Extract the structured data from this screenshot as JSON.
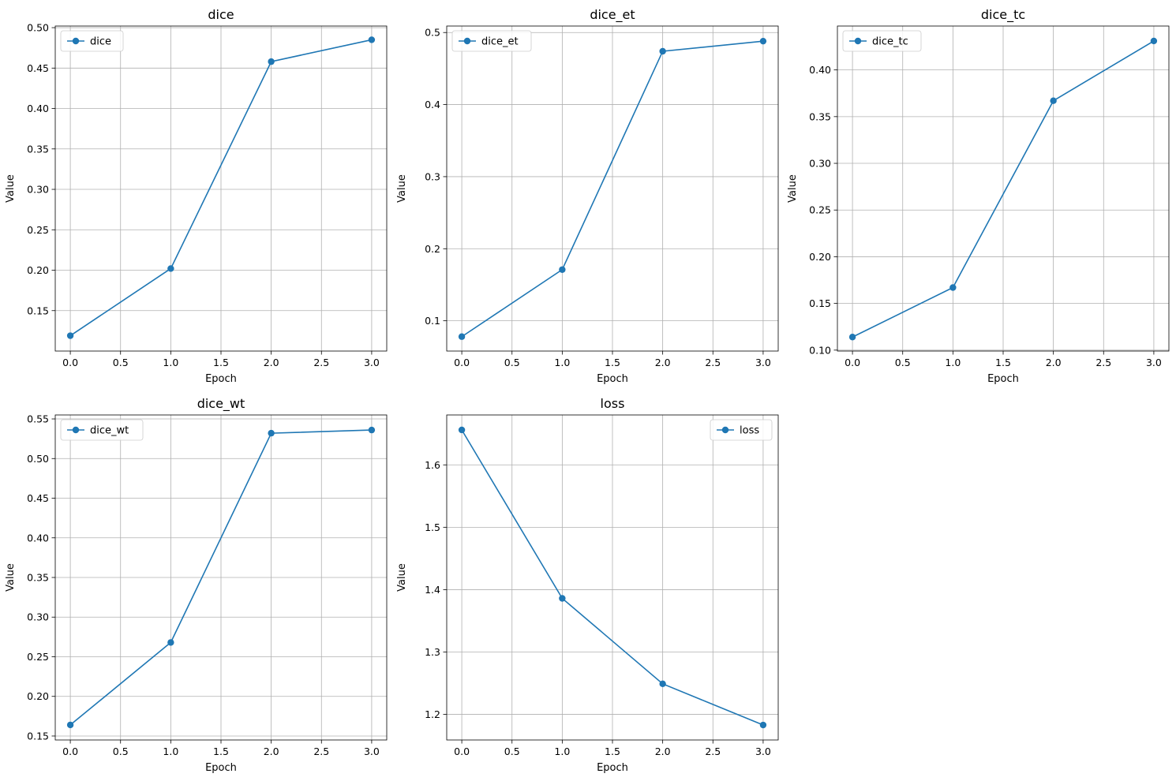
{
  "figure": {
    "background": "#ffffff",
    "line_color": "#1f77b4",
    "grid_color": "#b0b0b0"
  },
  "chart_data": [
    {
      "type": "line",
      "title": "dice",
      "xlabel": "Epoch",
      "ylabel": "Value",
      "x": [
        0,
        1,
        2,
        3
      ],
      "series": [
        {
          "name": "dice",
          "values": [
            0.119,
            0.202,
            0.458,
            0.485
          ],
          "marker": "o"
        }
      ],
      "xlim": [
        -0.15,
        3.15
      ],
      "ylim": [
        0.1,
        0.502
      ],
      "xticks": [
        0.0,
        0.5,
        1.0,
        1.5,
        2.0,
        2.5,
        3.0
      ],
      "xtick_labels": [
        "0.0",
        "0.5",
        "1.0",
        "1.5",
        "2.0",
        "2.5",
        "3.0"
      ],
      "yticks": [
        0.15,
        0.2,
        0.25,
        0.3,
        0.35,
        0.4,
        0.45,
        0.5
      ],
      "ytick_labels": [
        "0.15",
        "0.20",
        "0.25",
        "0.30",
        "0.35",
        "0.40",
        "0.45",
        "0.50"
      ],
      "grid": true,
      "legend_position": "top-left"
    },
    {
      "type": "line",
      "title": "dice_et",
      "xlabel": "Epoch",
      "ylabel": "Value",
      "x": [
        0,
        1,
        2,
        3
      ],
      "series": [
        {
          "name": "dice_et",
          "values": [
            0.078,
            0.171,
            0.474,
            0.488
          ],
          "marker": "o"
        }
      ],
      "xlim": [
        -0.15,
        3.15
      ],
      "ylim": [
        0.058,
        0.509
      ],
      "xticks": [
        0.0,
        0.5,
        1.0,
        1.5,
        2.0,
        2.5,
        3.0
      ],
      "xtick_labels": [
        "0.0",
        "0.5",
        "1.0",
        "1.5",
        "2.0",
        "2.5",
        "3.0"
      ],
      "yticks": [
        0.1,
        0.2,
        0.3,
        0.4,
        0.5
      ],
      "ytick_labels": [
        "0.1",
        "0.2",
        "0.3",
        "0.4",
        "0.5"
      ],
      "grid": true,
      "legend_position": "top-left"
    },
    {
      "type": "line",
      "title": "dice_tc",
      "xlabel": "Epoch",
      "ylabel": "Value",
      "x": [
        0,
        1,
        2,
        3
      ],
      "series": [
        {
          "name": "dice_tc",
          "values": [
            0.114,
            0.167,
            0.367,
            0.431
          ],
          "marker": "o"
        }
      ],
      "xlim": [
        -0.15,
        3.15
      ],
      "ylim": [
        0.099,
        0.447
      ],
      "xticks": [
        0.0,
        0.5,
        1.0,
        1.5,
        2.0,
        2.5,
        3.0
      ],
      "xtick_labels": [
        "0.0",
        "0.5",
        "1.0",
        "1.5",
        "2.0",
        "2.5",
        "3.0"
      ],
      "yticks": [
        0.1,
        0.15,
        0.2,
        0.25,
        0.3,
        0.35,
        0.4
      ],
      "ytick_labels": [
        "0.10",
        "0.15",
        "0.20",
        "0.25",
        "0.30",
        "0.35",
        "0.40"
      ],
      "grid": true,
      "legend_position": "top-left"
    },
    {
      "type": "line",
      "title": "dice_wt",
      "xlabel": "Epoch",
      "ylabel": "Value",
      "x": [
        0,
        1,
        2,
        3
      ],
      "series": [
        {
          "name": "dice_wt",
          "values": [
            0.164,
            0.268,
            0.532,
            0.536
          ],
          "marker": "o"
        }
      ],
      "xlim": [
        -0.15,
        3.15
      ],
      "ylim": [
        0.145,
        0.555
      ],
      "xticks": [
        0.0,
        0.5,
        1.0,
        1.5,
        2.0,
        2.5,
        3.0
      ],
      "xtick_labels": [
        "0.0",
        "0.5",
        "1.0",
        "1.5",
        "2.0",
        "2.5",
        "3.0"
      ],
      "yticks": [
        0.15,
        0.2,
        0.25,
        0.3,
        0.35,
        0.4,
        0.45,
        0.5,
        0.55
      ],
      "ytick_labels": [
        "0.15",
        "0.20",
        "0.25",
        "0.30",
        "0.35",
        "0.40",
        "0.45",
        "0.50",
        "0.55"
      ],
      "grid": true,
      "legend_position": "top-left"
    },
    {
      "type": "line",
      "title": "loss",
      "xlabel": "Epoch",
      "ylabel": "Value",
      "x": [
        0,
        1,
        2,
        3
      ],
      "series": [
        {
          "name": "loss",
          "values": [
            1.656,
            1.386,
            1.249,
            1.183
          ],
          "marker": "o"
        }
      ],
      "xlim": [
        -0.15,
        3.15
      ],
      "ylim": [
        1.159,
        1.68
      ],
      "xticks": [
        0.0,
        0.5,
        1.0,
        1.5,
        2.0,
        2.5,
        3.0
      ],
      "xtick_labels": [
        "0.0",
        "0.5",
        "1.0",
        "1.5",
        "2.0",
        "2.5",
        "3.0"
      ],
      "yticks": [
        1.2,
        1.3,
        1.4,
        1.5,
        1.6
      ],
      "ytick_labels": [
        "1.2",
        "1.3",
        "1.4",
        "1.5",
        "1.6"
      ],
      "grid": true,
      "legend_position": "top-right"
    }
  ]
}
